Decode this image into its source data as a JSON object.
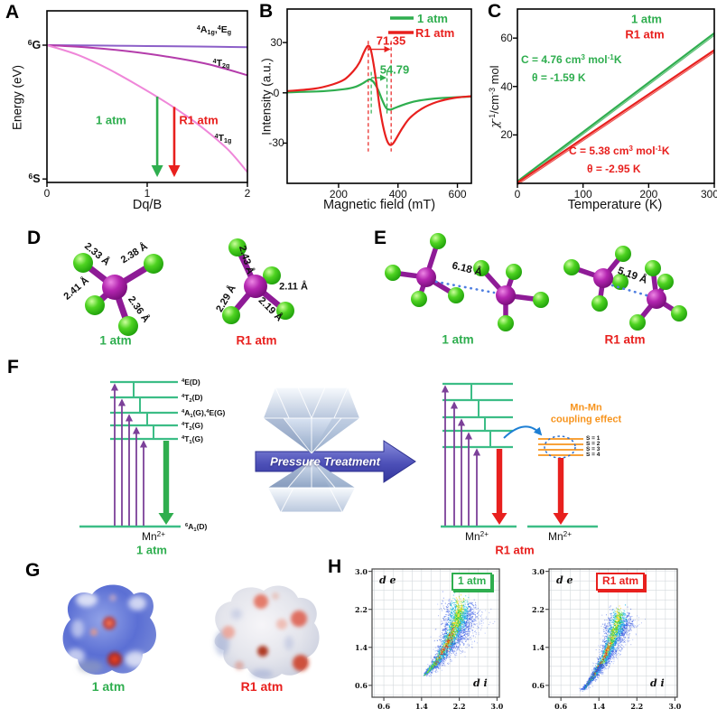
{
  "colors": {
    "green": "#2fae4f",
    "red": "#e8201e",
    "orange": "#f7941d",
    "purple_curve": "#8c5fc8",
    "magenta_curve": "#b43cab",
    "pink_curve": "#ef87d9",
    "level_green": "#3cbd86",
    "level_purple": "#7c4099",
    "blue_arrow": "#1e7fd4",
    "mol_purple": "#8e1b96",
    "mol_green": "#2fd018",
    "dotted_blue": "#4f7fe0"
  },
  "panels": {
    "A": {
      "letter": "A",
      "ylabel": "Energy (eV)",
      "xlabel": "Dq/B",
      "y_top": "^6^G",
      "y_bottom": "^6^S",
      "xtick_labels": [
        "0",
        "1",
        "2"
      ],
      "curve_labels": [
        "^4^A~1g~,^4^E~g~",
        "^4^T~2g~",
        "^4^T~1g~"
      ],
      "arrow_labels": [
        "1 atm",
        "R1 atm"
      ]
    },
    "B": {
      "letter": "B",
      "ylabel": "Intensity (a.u.)",
      "xlabel": "Magnetic field (mT)",
      "legend": [
        "1 atm",
        "R1 atm"
      ],
      "span_labels": [
        "71.35",
        "54.79"
      ]
    },
    "C": {
      "letter": "C",
      "ylabel": "{χ}^-1^/cm^-3^ mol",
      "xlabel": "Temperature (K)",
      "legend": [
        "1 atm",
        "R1 atm"
      ],
      "ann_green_C": "C = 4.76 cm^3^ mol^-1^K",
      "ann_green_theta": "θ = -1.59 K",
      "ann_red_C": "C = 5.38 cm^3^ mol^-1^K",
      "ann_red_theta": "θ = -2.95 K"
    },
    "D": {
      "letter": "D",
      "bond_labels_1atm": [
        "2.33 Å",
        "2.38 Å",
        "2.41 Å",
        "2.36 Å"
      ],
      "bond_labels_r1atm": [
        "2.43 Å",
        "2.11 Å",
        "2.29 Å",
        "2.19 Å"
      ],
      "name_1": "1 atm",
      "name_2": "R1 atm"
    },
    "E": {
      "letter": "E",
      "dist_1": "6.18 Å",
      "dist_2": "5.19 Å",
      "name_1": "1 atm",
      "name_2": "R1 atm"
    },
    "F": {
      "letter": "F",
      "levels": [
        "^4^E(D)",
        "^4^T~2~(D)",
        "^4^A~1~(G),^4^E(G)",
        "^4^T~2~(G)",
        "^4^T~1~(G)"
      ],
      "ground": "^6^A~1~(D)",
      "ion": "Mn^2+^",
      "pressure": "Pressure Treatment",
      "coupling1": "Mn-Mn",
      "coupling2": "coupling effect",
      "s_labels": [
        "S = 1",
        "S = 2",
        "S = 3",
        "S = 4"
      ],
      "name_1": "1 atm",
      "name_2": "R1 atm"
    },
    "G": {
      "letter": "G",
      "name_1": "1 atm",
      "name_2": "R1 atm"
    },
    "H": {
      "letter": "H",
      "xlabel": "d i",
      "ylabel": "d e",
      "tick_labels": [
        "0.6",
        "1.4",
        "2.2",
        "3.0"
      ],
      "legend_1": "1 atm",
      "legend_2": "R1 atm"
    }
  },
  "chart_data": [
    {
      "panel": "A",
      "type": "line",
      "xlabel": "Dq/B",
      "ylabel": "Energy (eV)",
      "xlim": [
        0,
        2
      ],
      "xticks": [
        0,
        1,
        2
      ],
      "free_ion_terms": [
        "6S",
        "6G"
      ],
      "note": "schematic Tanabe-Sugano diagram; y values are fractions of axis height",
      "series": [
        {
          "name": "4A1g,4Eg",
          "color": "#8c5fc8",
          "x": [
            0,
            0.5,
            1,
            1.5,
            2
          ],
          "y": [
            0.8,
            0.798,
            0.795,
            0.792,
            0.788
          ]
        },
        {
          "name": "4T2g",
          "color": "#b43cab",
          "x": [
            0,
            0.4,
            0.8,
            1.2,
            1.6,
            2
          ],
          "y": [
            0.8,
            0.787,
            0.765,
            0.733,
            0.69,
            0.625
          ]
        },
        {
          "name": "4T1g",
          "color": "#ef87d9",
          "x": [
            0,
            0.3,
            0.6,
            0.9,
            1.2,
            1.5,
            1.8,
            2
          ],
          "y": [
            0.8,
            0.745,
            0.665,
            0.568,
            0.462,
            0.342,
            0.195,
            0.06
          ]
        }
      ],
      "transition_arrows": [
        {
          "name": "1 atm",
          "color": "#2fae4f",
          "x": 1.1,
          "y_from": 0.5,
          "y_to": 0.045
        },
        {
          "name": "R1 atm",
          "color": "#e8201e",
          "x": 1.27,
          "y_from": 0.44,
          "y_to": 0.045
        }
      ]
    },
    {
      "panel": "B",
      "type": "line",
      "xlabel": "Magnetic field (mT)",
      "ylabel": "Intensity (a.u.)",
      "xlim": [
        27,
        647
      ],
      "ylim": [
        -54,
        50
      ],
      "xticks": [
        200,
        400,
        600
      ],
      "yticks": [
        -30,
        0,
        30
      ],
      "series": [
        {
          "name": "1 atm",
          "color": "#2fae4f",
          "points": [
            [
              27,
              0.3
            ],
            [
              150,
              1
            ],
            [
              220,
              2.2
            ],
            [
              255,
              3.5
            ],
            [
              280,
              5.5
            ],
            [
              295,
              7.2
            ],
            [
              305,
              8
            ],
            [
              315,
              7
            ],
            [
              325,
              4.5
            ],
            [
              335,
              1
            ],
            [
              345,
              -3.5
            ],
            [
              355,
              -7.5
            ],
            [
              363,
              -9.5
            ],
            [
              375,
              -10
            ],
            [
              390,
              -9
            ],
            [
              420,
              -7
            ],
            [
              460,
              -5
            ],
            [
              520,
              -3.5
            ],
            [
              580,
              -2.8
            ],
            [
              647,
              -2.2
            ]
          ]
        },
        {
          "name": "R1 atm",
          "color": "#e8201e",
          "points": [
            [
              27,
              1
            ],
            [
              120,
              2.5
            ],
            [
              180,
              5
            ],
            [
              220,
              8
            ],
            [
              250,
              13
            ],
            [
              270,
              18
            ],
            [
              285,
              24
            ],
            [
              298,
              28
            ],
            [
              308,
              26
            ],
            [
              318,
              17
            ],
            [
              328,
              5
            ],
            [
              338,
              -8
            ],
            [
              350,
              -20
            ],
            [
              362,
              -28
            ],
            [
              372,
              -31
            ],
            [
              382,
              -30.5
            ],
            [
              395,
              -27
            ],
            [
              415,
              -21
            ],
            [
              440,
              -15
            ],
            [
              480,
              -9.5
            ],
            [
              530,
              -5.5
            ],
            [
              590,
              -3
            ],
            [
              647,
              -2
            ]
          ]
        }
      ],
      "linewidth_annotations": [
        {
          "label": "71.35",
          "color": "#e8201e",
          "x1": 300,
          "x2": 377,
          "arrow_y": 26,
          "guide_top": 31,
          "guide_bottom": -35
        },
        {
          "label": "54.79",
          "color": "#2fae4f",
          "x1": 310,
          "x2": 363,
          "arrow_y": 9,
          "guide_top": 12.5,
          "guide_bottom": -13.5
        }
      ]
    },
    {
      "panel": "C",
      "type": "line",
      "xlabel": "Temperature (K)",
      "ylabel": "χ-1/cm-3 mol",
      "xlim": [
        0,
        300
      ],
      "ylim": [
        0,
        72
      ],
      "xticks": [
        0,
        100,
        200,
        300
      ],
      "yticks": [
        20,
        40,
        60
      ],
      "series": [
        {
          "name": "1 atm",
          "color": "#2fae4f",
          "x": [
            0,
            300
          ],
          "y": [
            0.8,
            62
          ],
          "curie_C_cm3molK": 4.76,
          "weiss_theta_K": -1.59
        },
        {
          "name": "R1 atm",
          "color": "#e8201e",
          "x": [
            0,
            300
          ],
          "y": [
            0.3,
            55
          ],
          "curie_C_cm3molK": 5.38,
          "weiss_theta_K": -2.95
        }
      ]
    },
    {
      "panel": "D",
      "type": "molecular-structure",
      "unit": "Å",
      "bond_lengths": [
        {
          "name": "1 atm",
          "values": [
            2.33,
            2.38,
            2.41,
            2.36
          ]
        },
        {
          "name": "R1 atm",
          "values": [
            2.43,
            2.11,
            2.29,
            2.19
          ]
        }
      ]
    },
    {
      "panel": "E",
      "type": "molecular-structure",
      "unit": "Å",
      "mn_mn_distances": [
        {
          "name": "1 atm",
          "value": 6.18
        },
        {
          "name": "R1 atm",
          "value": 5.19
        }
      ]
    },
    {
      "panel": "F",
      "type": "diagram",
      "excited_levels": [
        "4E(D)",
        "4T2(D)",
        "4A1(G),4E(G)",
        "4T2(G)",
        "4T1(G)"
      ],
      "ground_level": "6A1(D)",
      "ion": "Mn2+",
      "process": "Pressure Treatment",
      "coupling": "Mn-Mn coupling effect",
      "coupling_states": [
        "S = 1",
        "S = 2",
        "S = 3",
        "S = 4"
      ],
      "conditions": [
        "1 atm",
        "R1 atm"
      ]
    },
    {
      "panel": "H",
      "type": "scatter-fingerprint",
      "xlabel": "d i",
      "ylabel": "d e",
      "lim": [
        0.35,
        3.05
      ],
      "ticks": [
        0.6,
        1.4,
        2.2,
        3.0
      ],
      "plots": [
        {
          "name": "1 atm",
          "color": "#2fae4f",
          "seed": 7,
          "n": 3000,
          "spine": [
            [
              1.45,
              0.82
            ],
            [
              1.7,
              1.1
            ],
            [
              1.9,
              1.42
            ],
            [
              2.05,
              1.72
            ],
            [
              2.15,
              2.02
            ],
            [
              2.22,
              2.32
            ]
          ],
          "width": [
            0.02,
            0.4
          ],
          "wing": 0.55
        },
        {
          "name": "R1 atm",
          "color": "#e8201e",
          "seed": 13,
          "n": 2600,
          "spine": [
            [
              1.07,
              0.52
            ],
            [
              1.3,
              0.85
            ],
            [
              1.5,
              1.18
            ],
            [
              1.63,
              1.5
            ],
            [
              1.74,
              1.82
            ],
            [
              1.84,
              2.1
            ]
          ],
          "width": [
            0.015,
            0.3
          ],
          "wing": 0.35,
          "fork": [
            [
              1.02,
              0.5
            ],
            [
              1.45,
              1.05
            ]
          ]
        }
      ]
    }
  ]
}
